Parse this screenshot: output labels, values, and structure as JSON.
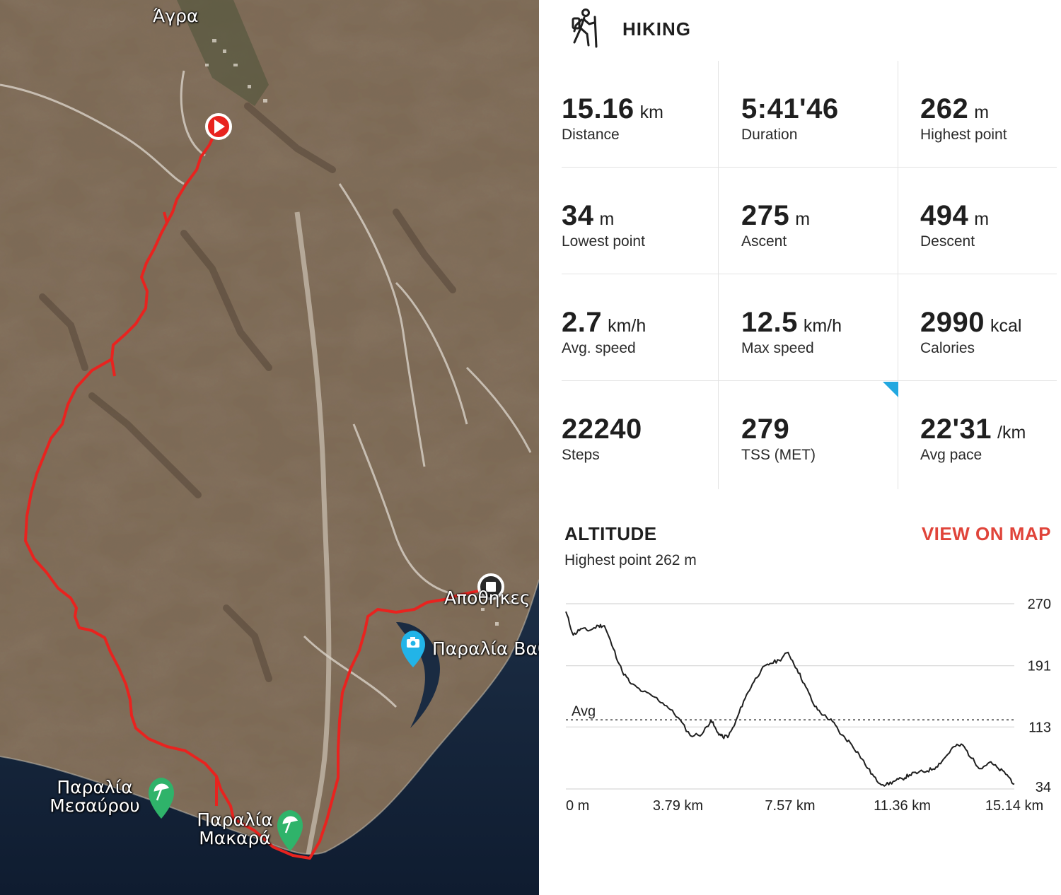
{
  "map": {
    "labels": {
      "agra": "Άγρα",
      "apothikes": "Αποθηκες",
      "paralia_vathy": "Παραλία Βαθ",
      "paralia_mesavrou_1": "Παραλία",
      "paralia_mesavrou_2": "Μεσαύρου",
      "paralia_makara_1": "Παραλία",
      "paralia_makara_2": "Μακαρά"
    },
    "route_color": "#e8231f",
    "start_marker_icon": "play-icon",
    "end_marker_icon": "stop-icon",
    "beach_icon": "umbrella-icon",
    "photo_icon": "camera-icon"
  },
  "header": {
    "activity": "HIKING",
    "icon": "hiker-icon"
  },
  "stats": [
    {
      "value": "15.16",
      "unit": "km",
      "label": "Distance"
    },
    {
      "value": "5:41'46",
      "unit": "",
      "label": "Duration"
    },
    {
      "value": "262",
      "unit": "m",
      "label": "Highest point"
    },
    {
      "value": "34",
      "unit": "m",
      "label": "Lowest point"
    },
    {
      "value": "275",
      "unit": "m",
      "label": "Ascent"
    },
    {
      "value": "494",
      "unit": "m",
      "label": "Descent"
    },
    {
      "value": "2.7",
      "unit": "km/h",
      "label": "Avg. speed"
    },
    {
      "value": "12.5",
      "unit": "km/h",
      "label": "Max speed"
    },
    {
      "value": "2990",
      "unit": "kcal",
      "label": "Calories"
    },
    {
      "value": "22240",
      "unit": "",
      "label": "Steps"
    },
    {
      "value": "279",
      "unit": "",
      "label": "TSS (MET)"
    },
    {
      "value": "22'31",
      "unit": "/km",
      "label": "Avg pace"
    }
  ],
  "altitude": {
    "title": "ALTITUDE",
    "view_on_map": "VIEW ON MAP",
    "subtitle": "Highest point 262 m",
    "accent_color": "#e0443a"
  },
  "chart_data": {
    "type": "line",
    "xlabel": "",
    "ylabel": "",
    "x_tick_labels": [
      "0 m",
      "3.79 km",
      "7.57 km",
      "11.36 km",
      "15.14 km"
    ],
    "y_tick_labels": [
      "270",
      "191",
      "113",
      "34"
    ],
    "ylim": [
      34,
      270
    ],
    "xlim": [
      0,
      15.14
    ],
    "avg_label": "Avg",
    "avg_value": 122,
    "series": [
      {
        "x": [
          0,
          0.25,
          0.5,
          0.8,
          1.1,
          1.3,
          1.6,
          1.9,
          2.2,
          2.6,
          3.0,
          3.4,
          3.79,
          4.2,
          4.6,
          4.9,
          5.1,
          5.3,
          5.5,
          5.7,
          6.0,
          6.3,
          6.6,
          6.9,
          7.2,
          7.5,
          7.8,
          8.1,
          8.4,
          8.7,
          9.0,
          9.3,
          9.6,
          9.9,
          10.2,
          10.5,
          10.8,
          11.1,
          11.36,
          11.6,
          11.9,
          12.2,
          12.5,
          12.8,
          13.1,
          13.4,
          13.7,
          14.0,
          14.3,
          14.6,
          14.9,
          15.14
        ],
        "y": [
          260,
          230,
          238,
          236,
          242,
          242,
          213,
          184,
          168,
          158,
          151,
          140,
          125,
          102,
          104,
          122,
          107,
          100,
          102,
          116,
          146,
          168,
          186,
          194,
          198,
          208,
          187,
          164,
          139,
          128,
          120,
          103,
          93,
          78,
          60,
          44,
          39,
          44,
          47,
          52,
          55,
          57,
          62,
          74,
          88,
          90,
          73,
          60,
          68,
          60,
          52,
          40
        ]
      }
    ]
  }
}
